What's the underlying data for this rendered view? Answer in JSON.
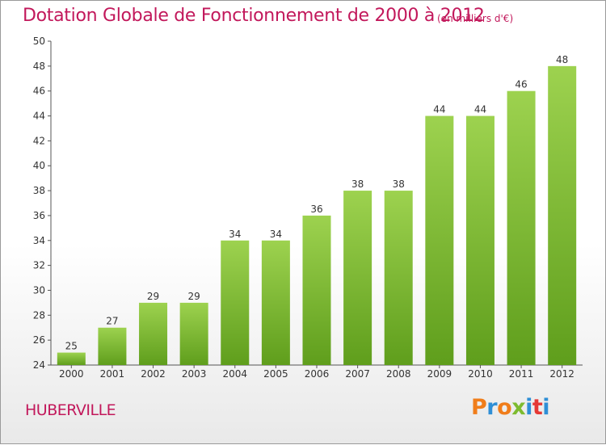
{
  "header": {
    "title": "Dotation Globale de Fonctionnement de 2000 à 2012",
    "subtitle": "(en milliers d'€)"
  },
  "footer": {
    "commune": "HUBERVILLE",
    "logo_text": "Proxiti"
  },
  "colors": {
    "title": "#c2185b",
    "bar_top": "#9dd24f",
    "bar_bottom": "#5f9e1c",
    "logo_letters": [
      "#f07d1a",
      "#2f8fd6",
      "#f07d1a",
      "#7dbb2f",
      "#2f8fd6",
      "#e53935",
      "#2f8fd6"
    ]
  },
  "chart_data": {
    "type": "bar",
    "title": "Dotation Globale de Fonctionnement de 2000 à 2012",
    "subtitle": "(en milliers d'€)",
    "categories": [
      "2000",
      "2001",
      "2002",
      "2003",
      "2004",
      "2005",
      "2006",
      "2007",
      "2008",
      "2009",
      "2010",
      "2011",
      "2012"
    ],
    "values": [
      25,
      27,
      29,
      29,
      34,
      34,
      36,
      38,
      38,
      44,
      44,
      46,
      48
    ],
    "ylim": [
      24,
      50
    ],
    "yticks": [
      24,
      26,
      28,
      30,
      32,
      34,
      36,
      38,
      40,
      42,
      44,
      46,
      48,
      50
    ],
    "grid": false,
    "legend": "none",
    "data_labels": true
  }
}
